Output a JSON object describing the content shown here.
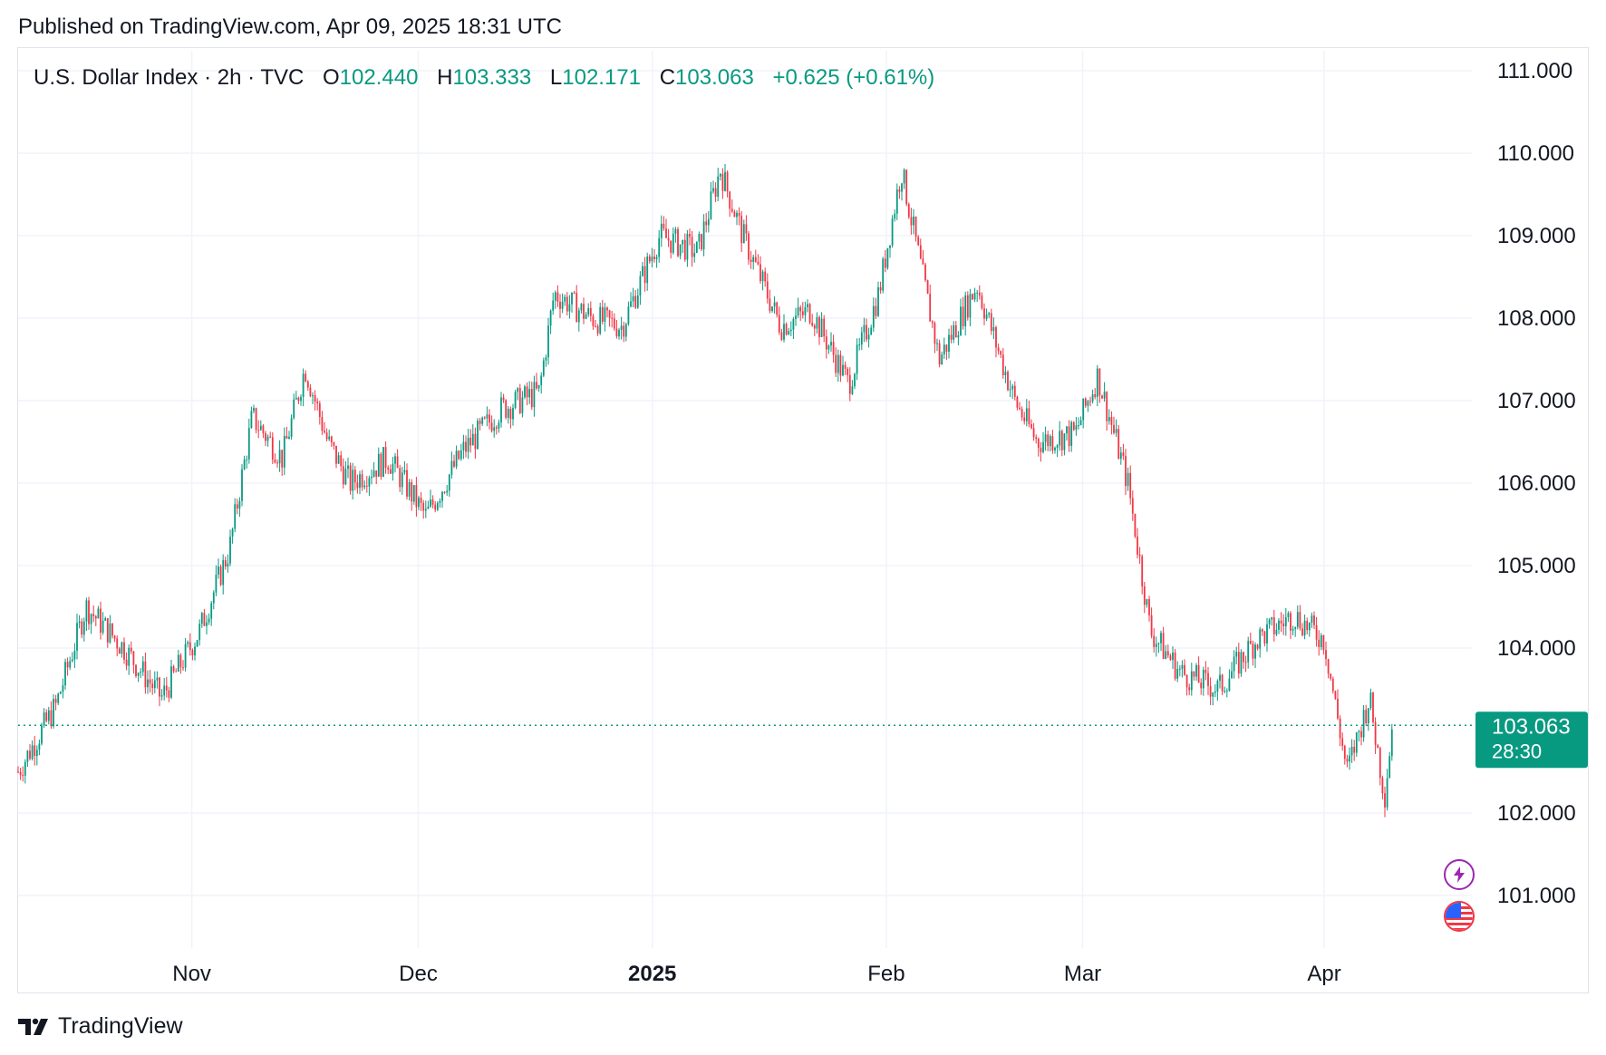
{
  "published": "Published on TradingView.com, Apr 09, 2025 18:31 UTC",
  "legend": {
    "symbol": "U.S. Dollar Index · 2h · TVC",
    "o_label": "O",
    "o_value": "102.440",
    "h_label": "H",
    "h_value": "103.333",
    "l_label": "L",
    "l_value": "102.171",
    "c_label": "C",
    "c_value": "103.063",
    "change": "+0.625 (+0.61%)"
  },
  "price_tag": {
    "price": "103.063",
    "countdown": "28:30"
  },
  "footer": {
    "brand": "TradingView"
  },
  "icons": [
    "lightning-icon",
    "us-flag-icon",
    "tradingview-logo-icon"
  ],
  "colors": {
    "up": "#089981",
    "down": "#f23645",
    "tag_bg": "#089981",
    "grid": "#f0f3fa",
    "text": "#131722"
  },
  "chart_data": {
    "type": "candlestick",
    "title": "U.S. Dollar Index · 2h · TVC",
    "interval": "2h",
    "x_ticks": [
      "Nov",
      "Dec",
      "2025",
      "Feb",
      "Mar",
      "Apr"
    ],
    "y_ticks": [
      "111.000",
      "110.000",
      "109.000",
      "108.000",
      "107.000",
      "106.000",
      "105.000",
      "104.000",
      "102.000",
      "101.000"
    ],
    "ylim": [
      100.3,
      111.3
    ],
    "last_price": 103.063,
    "grid": true,
    "series": [
      {
        "x": [
          "2024-10-09",
          "2024-10-14",
          "2024-10-18",
          "2024-10-23",
          "2024-10-28",
          "2024-11-02",
          "2024-11-06",
          "2024-11-09",
          "2024-11-13",
          "2024-11-16",
          "2024-11-19",
          "2024-11-22",
          "2024-11-27",
          "2024-12-02",
          "2024-12-07",
          "2024-12-12",
          "2024-12-17",
          "2024-12-19",
          "2024-12-24",
          "2024-12-28",
          "2025-01-02",
          "2025-01-07",
          "2025-01-10",
          "2025-01-13",
          "2025-01-18",
          "2025-01-22",
          "2025-01-27",
          "2025-01-31",
          "2025-02-03",
          "2025-02-08",
          "2025-02-13",
          "2025-02-18",
          "2025-02-21",
          "2025-02-26",
          "2025-03-01",
          "2025-03-05",
          "2025-03-08",
          "2025-03-12",
          "2025-03-17",
          "2025-03-22",
          "2025-03-27",
          "2025-03-31",
          "2025-04-03",
          "2025-04-06",
          "2025-04-08",
          "2025-04-09"
        ],
        "close": [
          102.5,
          103.3,
          104.5,
          104.0,
          103.4,
          104.2,
          105.2,
          106.8,
          106.3,
          107.4,
          106.5,
          106.0,
          106.3,
          105.6,
          106.4,
          106.9,
          107.1,
          108.3,
          108.0,
          107.9,
          109.0,
          108.8,
          109.8,
          109.0,
          107.9,
          108.1,
          107.2,
          108.3,
          109.8,
          107.5,
          108.4,
          107.0,
          106.5,
          106.6,
          107.3,
          106.0,
          104.2,
          103.7,
          103.5,
          104.1,
          104.4,
          104.1,
          102.5,
          103.4,
          102.2,
          103.063
        ]
      }
    ]
  }
}
